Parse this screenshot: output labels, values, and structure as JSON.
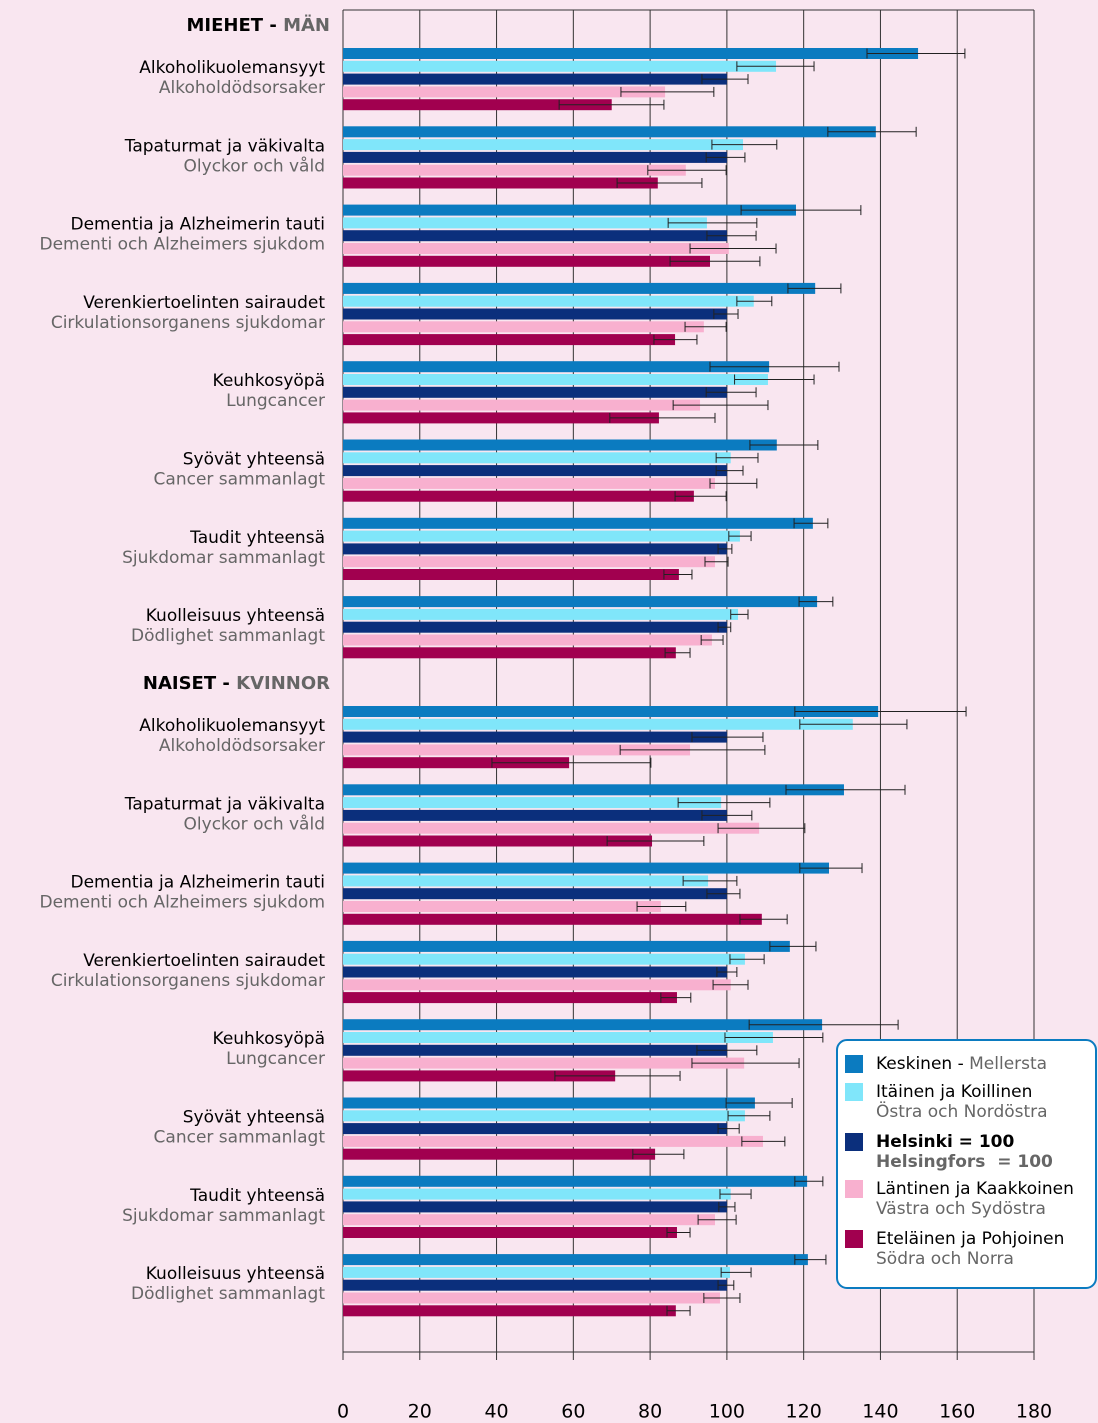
{
  "chart_data": {
    "type": "hbar",
    "groups": [
      {
        "title": [
          "MIEHET -",
          "MÄN"
        ],
        "categories": [
          [
            "Alkoholikuolemansyyt",
            "Alkoholdödsorsaker"
          ],
          [
            "Tapaturmat ja väkivalta",
            "Olyckor och våld"
          ],
          [
            "Dementia ja Alzheimerin tauti",
            "Dementi och Alzheimers sjukdom"
          ],
          [
            "Verenkiertoelinten sairaudet",
            "Cirkulationsorganens sjukdomar"
          ],
          [
            "Keuhkosyöpä",
            "Lungcancer"
          ],
          [
            "Syövät yhteensä",
            "Cancer sammanlagt"
          ],
          [
            "Taudit yhteensä",
            "Sjukdomar sammanlagt"
          ],
          [
            "Kuolleisuus yhteensä",
            "Dödlighet sammanlagt"
          ]
        ],
        "series": [
          {
            "values": [
              149.8,
              138.8,
              118,
              123,
              111,
              113,
              122.4,
              123.5
            ],
            "errors": [
              [
                136.5,
                162
              ],
              [
                126.3,
                149.3
              ],
              [
                103.7,
                134.9
              ],
              [
                115.9,
                129.7
              ],
              [
                95.6,
                129.2
              ],
              [
                106,
                123.7
              ],
              [
                117.5,
                126.3
              ],
              [
                118.8,
                127.6
              ]
            ]
          },
          {
            "values": [
              112.8,
              104.2,
              94.8,
              107,
              110.7,
              101,
              103.4,
              102.9
            ],
            "errors": [
              [
                102.6,
                122.7
              ],
              [
                96.1,
                113
              ],
              [
                84.7,
                107.8
              ],
              [
                102.6,
                111.7
              ],
              [
                102,
                122.7
              ],
              [
                97.2,
                108.1
              ],
              [
                100.5,
                106.3
              ],
              [
                101,
                105.5
              ]
            ]
          },
          {
            "values": [
              100,
              100,
              100,
              100,
              100,
              100,
              100,
              100
            ],
            "errors": [
              [
                93.5,
                105.5
              ],
              [
                94.6,
                104.7
              ],
              [
                94.8,
                107.6
              ],
              [
                96.6,
                102.9
              ],
              [
                94.6,
                107.6
              ],
              [
                97.2,
                104.2
              ],
              [
                97.7,
                101.3
              ],
              [
                97.7,
                101
              ]
            ]
          },
          {
            "values": [
              83.9,
              89.3,
              100.5,
              94,
              93,
              96.9,
              96.9,
              96.1
            ],
            "errors": [
              [
                72.4,
                96.6
              ],
              [
                79.4,
                99.8
              ],
              [
                90.4,
                112.8
              ],
              [
                89.1,
                99.8
              ],
              [
                86,
                110.7
              ],
              [
                95.6,
                107.8
              ],
              [
                94.3,
                100.3
              ],
              [
                93.3,
                99
              ]
            ]
          },
          {
            "values": [
              70,
              82,
              95.6,
              86.5,
              82.3,
              91.4,
              87.5,
              86.7
            ],
            "errors": [
              [
                56.3,
                83.6
              ],
              [
                71.4,
                93.5
              ],
              [
                85.2,
                108.6
              ],
              [
                81,
                92.2
              ],
              [
                69.5,
                96.9
              ],
              [
                86.5,
                99.8
              ],
              [
                83.6,
                90.9
              ],
              [
                83.9,
                90.4
              ]
            ]
          }
        ]
      },
      {
        "title": [
          "NAISET -",
          "KVINNOR"
        ],
        "categories": [
          [
            "Alkoholikuolemansyyt",
            "Alkoholdödsorsaker"
          ],
          [
            "Tapaturmat ja väkivalta",
            "Olyckor och våld"
          ],
          [
            "Dementia ja Alzheimerin tauti",
            "Dementi och Alzheimers sjukdom"
          ],
          [
            "Verenkiertoelinten sairaudet",
            "Cirkulationsorganens sjukdomar"
          ],
          [
            "Keuhkosyöpä",
            "Lungcancer"
          ],
          [
            "Syövät yhteensä",
            "Cancer sammanlagt"
          ],
          [
            "Taudit yhteensä",
            "Sjukdomar sammanlagt"
          ],
          [
            "Kuolleisuus yhteensä",
            "Dödlighet sammanlagt"
          ]
        ],
        "series": [
          {
            "values": [
              139.4,
              130.5,
              126.6,
              116.4,
              124.8,
              107.3,
              120.9,
              121.1
            ],
            "errors": [
              [
                117.7,
                162.3
              ],
              [
                115.4,
                146.4
              ],
              [
                119,
                135.2
              ],
              [
                111.2,
                123.2
              ],
              [
                105.8,
                144.6
              ],
              [
                99.8,
                117
              ],
              [
                117.7,
                125
              ],
              [
                117.7,
                125.8
              ]
            ]
          },
          {
            "values": [
              132.8,
              98.5,
              95.1,
              104.7,
              112,
              104.7,
              101,
              100.8
            ],
            "errors": [
              [
                119,
                146.9
              ],
              [
                87.3,
                111.2
              ],
              [
                88.6,
                102.6
              ],
              [
                100.8,
                109.7
              ],
              [
                99.5,
                125
              ],
              [
                100.3,
                111.2
              ],
              [
                98.2,
                106.3
              ],
              [
                98.5,
                106.3
              ]
            ]
          },
          {
            "values": [
              100,
              100,
              100,
              100,
              100,
              100,
              100,
              100
            ],
            "errors": [
              [
                90.9,
                109.4
              ],
              [
                93.5,
                106.5
              ],
              [
                94.8,
                103.4
              ],
              [
                97.4,
                102.6
              ],
              [
                92.2,
                107.8
              ],
              [
                97.7,
                103.2
              ],
              [
                97.9,
                102.1
              ],
              [
                97.7,
                101.8
              ]
            ]
          },
          {
            "values": [
              90.4,
              108.4,
              82.8,
              101,
              104.5,
              109.4,
              96.9,
              98.2
            ],
            "errors": [
              [
                72.2,
                109.9
              ],
              [
                97.7,
                120.3
              ],
              [
                76.6,
                89.3
              ],
              [
                96.4,
                105.5
              ],
              [
                90.9,
                118.8
              ],
              [
                103.9,
                115.1
              ],
              [
                92.5,
                102.4
              ],
              [
                94,
                103.4
              ]
            ]
          },
          {
            "values": [
              58.9,
              80.5,
              109.1,
              87,
              70.9,
              81.3,
              87,
              86.7
            ],
            "errors": [
              [
                38.8,
                80.2
              ],
              [
                68.8,
                94
              ],
              [
                103.4,
                115.7
              ],
              [
                82.8,
                90.6
              ],
              [
                55.2,
                87.8
              ],
              [
                75.5,
                88.8
              ],
              [
                84.4,
                90.4
              ],
              [
                84.4,
                90.4
              ]
            ]
          }
        ]
      }
    ],
    "legend": [
      {
        "name": [
          "Keskinen -",
          "Mellersta"
        ],
        "color": "#0b7bc0"
      },
      {
        "name": [
          "Itäinen ja Koillinen",
          "Östra och Nordöstra"
        ],
        "color": "#80e6fa"
      },
      {
        "name": [
          "Helsinki = 100",
          "Helsingfors  = 100"
        ],
        "color": "#0b2f7c"
      },
      {
        "name": [
          "Läntinen ja Kaakkoinen",
          "Västra och Sydöstra"
        ],
        "color": "#f8b0cf"
      },
      {
        "name": [
          "Eteläinen ja Pohjoinen",
          "Södra och Norra"
        ],
        "color": "#a1004f"
      }
    ],
    "xlim": [
      0,
      180
    ],
    "xticks": [
      0,
      20,
      40,
      60,
      80,
      100,
      120,
      140,
      160,
      180
    ],
    "grid": true
  }
}
